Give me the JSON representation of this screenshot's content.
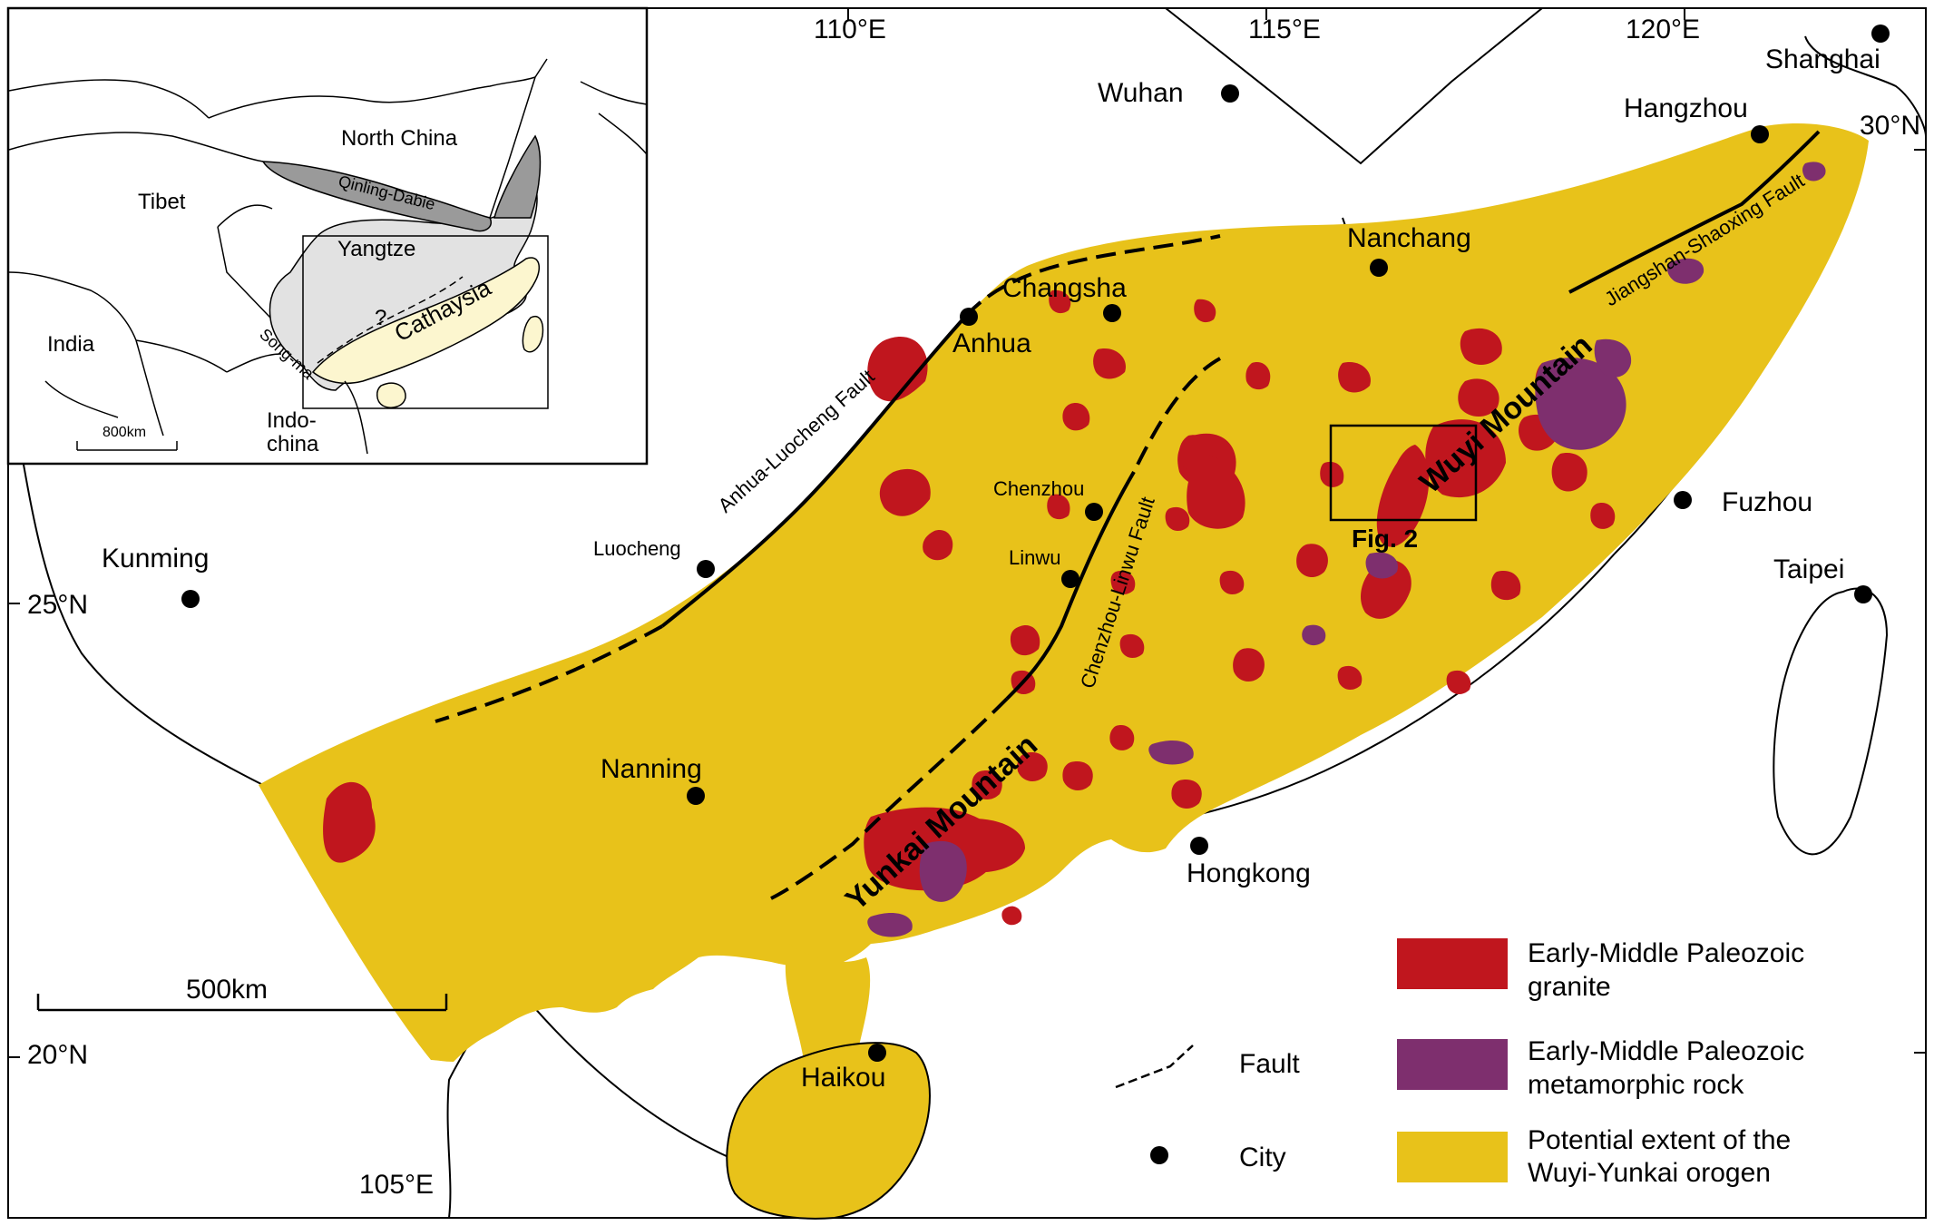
{
  "colors": {
    "orogen": "#E8C21A",
    "granite": "#C0161E",
    "metamorphic": "#7E2F6E",
    "line": "#000000",
    "inset_yangtze": "#E2E2E2",
    "inset_cathaysia": "#FCF6CF",
    "inset_qinling": "#9A9A9A"
  },
  "lon_labels": {
    "e110": "110°E",
    "e115": "115°E",
    "e120": "120°E",
    "e105": "105°E"
  },
  "lat_labels": {
    "n30": "30°N",
    "n25": "25°N",
    "n20": "20°N"
  },
  "cities": {
    "shanghai": "Shanghai",
    "wuhan": "Wuhan",
    "hangzhou": "Hangzhou",
    "nanchang": "Nanchang",
    "changsha": "Changsha",
    "anhua": "Anhua",
    "chenzhou": "Chenzhou",
    "linwu": "Linwu",
    "luocheng": "Luocheng",
    "kunming": "Kunming",
    "fuzhou": "Fuzhou",
    "taipei": "Taipei",
    "nanning": "Nanning",
    "hongkong": "Hongkong",
    "haikou": "Haikou"
  },
  "faults": {
    "anhua_luocheng": "Anhua-Luocheng Fault",
    "chenzhou_linwu": "Chenzhou-Linwu Fault",
    "jiangshan_shaoxing": "Jiangshan-Shaoxing Fault"
  },
  "mountains": {
    "wuyi": "Wuyi Mountain",
    "yunkai": "Yunkai Mountain"
  },
  "fig_box": "Fig. 2",
  "scale_bar": "500km",
  "inset": {
    "north_china": "North China",
    "tibet": "Tibet",
    "qinling_dabie": "Qinling-Dabie",
    "yangtze": "Yangtze",
    "cathaysia": "Cathaysia",
    "india": "India",
    "song_ma": "Song-ma",
    "indo": "Indo-",
    "china": "china",
    "question": "?",
    "scale": "800km"
  },
  "legend": {
    "granite_line1": "Early-Middle Paleozoic",
    "granite_line2": "granite",
    "meta_line1": "Early-Middle Paleozoic",
    "meta_line2": "metamorphic rock",
    "orogen_line1": "Potential extent of the",
    "orogen_line2": "Wuyi-Yunkai orogen",
    "fault": "Fault",
    "city": "City"
  }
}
